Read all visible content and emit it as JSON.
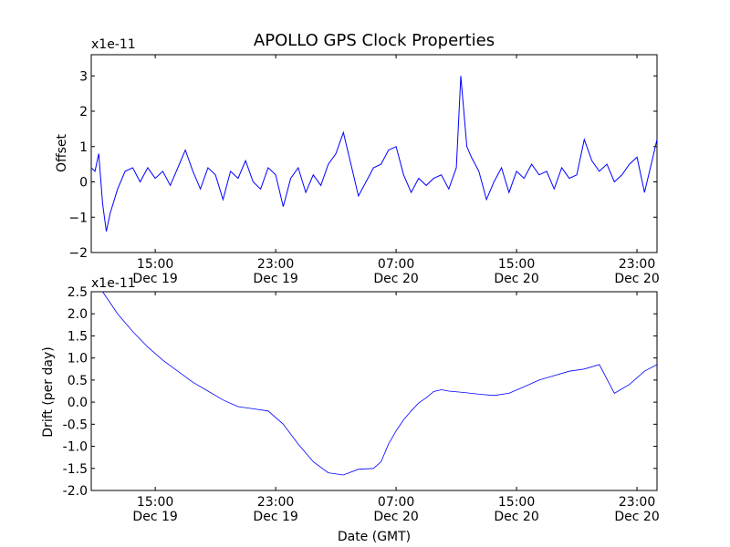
{
  "chart_data": [
    {
      "type": "line",
      "title": "APOLLO GPS Clock Properties",
      "xlabel": "",
      "ylabel": "Offset",
      "y_scale_label": "x1e-11",
      "xlim": [
        "2012-12-19 10:45",
        "2012-12-21 00:20"
      ],
      "ylim": [
        -2,
        3.6
      ],
      "y_ticks": [
        "−2",
        "−1",
        "0",
        "1",
        "2",
        "3"
      ],
      "x_ticks": [
        {
          "time": "15:00",
          "date": "Dec 19"
        },
        {
          "time": "23:00",
          "date": "Dec 19"
        },
        {
          "time": "07:00",
          "date": "Dec 20"
        },
        {
          "time": "15:00",
          "date": "Dec 20"
        },
        {
          "time": "23:00",
          "date": "Dec 20"
        }
      ],
      "grid": false,
      "series": [
        {
          "color": "#0000ff",
          "x_hours_from_dec19_0000": [
            10.75,
            11.0,
            11.25,
            11.5,
            11.75,
            12.0,
            12.5,
            13.0,
            13.5,
            14.0,
            14.5,
            15.0,
            15.5,
            16.0,
            16.5,
            17.0,
            17.5,
            18.0,
            18.5,
            19.0,
            19.5,
            20.0,
            20.5,
            21.0,
            21.5,
            22.0,
            22.5,
            23.0,
            23.5,
            24.0,
            24.5,
            25.0,
            25.5,
            26.0,
            26.5,
            27.0,
            27.5,
            28.0,
            28.5,
            29.0,
            29.5,
            30.0,
            30.5,
            31.0,
            31.5,
            32.0,
            32.5,
            33.0,
            33.5,
            34.0,
            34.5,
            35.0,
            35.3,
            35.5,
            35.7,
            36.0,
            36.5,
            37.0,
            37.5,
            38.0,
            38.5,
            39.0,
            39.5,
            40.0,
            40.5,
            41.0,
            41.5,
            42.0,
            42.5,
            43.0,
            43.5,
            44.0,
            44.5,
            45.0,
            45.5,
            46.0,
            46.5,
            47.0,
            47.5,
            48.0,
            48.33
          ],
          "values": [
            0.4,
            0.3,
            0.8,
            -0.6,
            -1.4,
            -0.9,
            -0.2,
            0.3,
            0.4,
            0.0,
            0.4,
            0.1,
            0.3,
            -0.1,
            0.4,
            0.9,
            0.3,
            -0.2,
            0.4,
            0.2,
            -0.5,
            0.3,
            0.1,
            0.6,
            0.0,
            -0.2,
            0.4,
            0.2,
            -0.7,
            0.1,
            0.4,
            -0.3,
            0.2,
            -0.1,
            0.5,
            0.8,
            1.4,
            0.5,
            -0.4,
            0.0,
            0.4,
            0.5,
            0.9,
            1.0,
            0.2,
            -0.3,
            0.1,
            -0.1,
            0.1,
            0.2,
            -0.2,
            0.4,
            3.0,
            2.0,
            1.0,
            0.7,
            0.3,
            -0.5,
            0.0,
            0.4,
            -0.3,
            0.3,
            0.1,
            0.5,
            0.2,
            0.3,
            -0.2,
            0.4,
            0.1,
            0.2,
            1.2,
            0.6,
            0.3,
            0.5,
            0.0,
            0.2,
            0.5,
            0.7,
            -0.3,
            0.6,
            1.2
          ]
        }
      ]
    },
    {
      "type": "line",
      "title": "",
      "xlabel": "Date (GMT)",
      "ylabel": "Drift (per day)",
      "y_scale_label": "x1e-11",
      "xlim": [
        "2012-12-19 10:45",
        "2012-12-21 00:20"
      ],
      "ylim": [
        -2.0,
        2.5
      ],
      "y_ticks": [
        "-2.0",
        "-1.5",
        "-1.0",
        "-0.5",
        "0.0",
        "0.5",
        "1.0",
        "1.5",
        "2.0",
        "2.5"
      ],
      "x_ticks": [
        {
          "time": "15:00",
          "date": "Dec 19"
        },
        {
          "time": "23:00",
          "date": "Dec 19"
        },
        {
          "time": "07:00",
          "date": "Dec 20"
        },
        {
          "time": "15:00",
          "date": "Dec 20"
        },
        {
          "time": "23:00",
          "date": "Dec 20"
        }
      ],
      "grid": false,
      "series": [
        {
          "color": "#0000ff",
          "x_hours_from_dec19_0000": [
            11.5,
            12.5,
            13.5,
            14.5,
            15.5,
            16.5,
            17.5,
            18.5,
            19.5,
            20.5,
            21.5,
            22.5,
            23.5,
            24.5,
            25.5,
            26.5,
            27.5,
            28.5,
            29.5,
            30.0,
            30.5,
            31.0,
            31.5,
            32.0,
            32.5,
            33.0,
            33.5,
            34.0,
            34.5,
            35.5,
            36.5,
            37.5,
            38.5,
            39.5,
            40.5,
            41.5,
            42.5,
            43.5,
            44.5,
            45.5,
            46.5,
            47.5,
            48.33
          ],
          "values": [
            2.5,
            2.0,
            1.6,
            1.25,
            0.95,
            0.7,
            0.45,
            0.25,
            0.05,
            -0.1,
            -0.15,
            -0.2,
            -0.5,
            -0.95,
            -1.35,
            -1.6,
            -1.65,
            -1.52,
            -1.5,
            -1.35,
            -0.95,
            -0.65,
            -0.4,
            -0.2,
            -0.02,
            0.1,
            0.24,
            0.28,
            0.25,
            0.22,
            0.18,
            0.15,
            0.2,
            0.35,
            0.5,
            0.6,
            0.7,
            0.75,
            0.85,
            0.2,
            0.4,
            0.7,
            0.85
          ]
        }
      ]
    }
  ]
}
